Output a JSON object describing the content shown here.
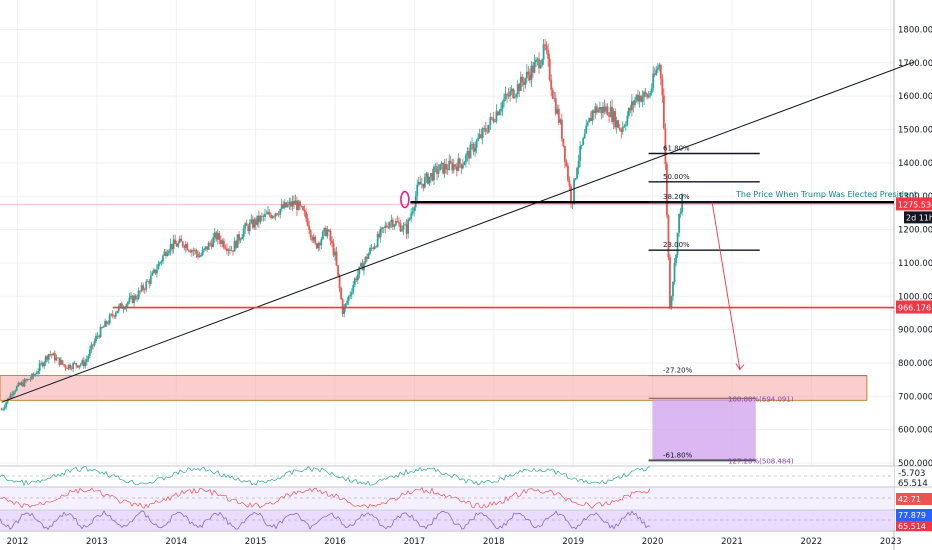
{
  "chart_data": {
    "type": "candlestick",
    "price_axis": {
      "ticks": [
        "1800.000",
        "1700.000",
        "1600.000",
        "1500.000",
        "1400.000",
        "1300.000",
        "1200.000",
        "1100.000",
        "1000.000",
        "900.000",
        "800.000",
        "700.000",
        "600.000",
        "500.000"
      ],
      "range": [
        488,
        1840
      ]
    },
    "time_axis": {
      "ticks": [
        "2012",
        "2013",
        "2014",
        "2015",
        "2016",
        "2017",
        "2018",
        "2019",
        "2020",
        "2021",
        "2022",
        "2023"
      ],
      "range": [
        2011.78,
        2023.52
      ]
    },
    "current_price": {
      "label": "1275.536",
      "countdown": "2d 11h",
      "value": 1275.5,
      "color": "#f23645"
    },
    "support_line": {
      "label": "966.176",
      "value": 966.2,
      "color": "#f23645"
    },
    "annotation": {
      "text": "The Price When Trump Was Elected President",
      "value": 1282
    },
    "fib_upper": [
      {
        "label": "61.80%",
        "value": 1428
      },
      {
        "label": "50.00%",
        "value": 1343
      },
      {
        "label": "38.20%",
        "value": 1282
      },
      {
        "label": "23.00%",
        "value": 1138
      }
    ],
    "fib_lower": [
      {
        "label": "-27.20%",
        "value": 762
      },
      {
        "label": "100.00%(694.091)",
        "value": 694
      },
      {
        "label": "127.20%(508.484)",
        "value": 508
      },
      {
        "label": "-61.80%",
        "value": 508
      }
    ],
    "trendline": {
      "start": [
        2011.8,
        682
      ],
      "end": [
        2023.3,
        1703
      ]
    },
    "zone": {
      "x_range": [
        2011.78,
        2022.7
      ],
      "y_range": [
        688,
        762
      ],
      "color": "#f7a6a6"
    },
    "target_box": {
      "x_range": [
        2020.0,
        2021.3
      ],
      "y_range": [
        508,
        694
      ],
      "color": "#cfa0ec"
    },
    "projection_arrow": {
      "start": [
        2020.75,
        1282
      ],
      "end": [
        2021.1,
        780
      ]
    },
    "price_path": [
      [
        2011.8,
        660
      ],
      [
        2011.95,
        720
      ],
      [
        2012.2,
        760
      ],
      [
        2012.4,
        830
      ],
      [
        2012.6,
        790
      ],
      [
        2012.85,
        800
      ],
      [
        2013.0,
        880
      ],
      [
        2013.25,
        960
      ],
      [
        2013.5,
        1000
      ],
      [
        2013.7,
        1060
      ],
      [
        2013.9,
        1150
      ],
      [
        2014.1,
        1160
      ],
      [
        2014.3,
        1120
      ],
      [
        2014.5,
        1180
      ],
      [
        2014.7,
        1140
      ],
      [
        2014.85,
        1200
      ],
      [
        2015.05,
        1230
      ],
      [
        2015.3,
        1260
      ],
      [
        2015.5,
        1280
      ],
      [
        2015.65,
        1230
      ],
      [
        2015.75,
        1150
      ],
      [
        2015.9,
        1200
      ],
      [
        2016.0,
        1120
      ],
      [
        2016.1,
        950
      ],
      [
        2016.25,
        1050
      ],
      [
        2016.45,
        1140
      ],
      [
        2016.7,
        1230
      ],
      [
        2016.9,
        1200
      ],
      [
        2017.05,
        1330
      ],
      [
        2017.3,
        1380
      ],
      [
        2017.6,
        1400
      ],
      [
        2017.9,
        1500
      ],
      [
        2018.1,
        1580
      ],
      [
        2018.35,
        1640
      ],
      [
        2018.55,
        1700
      ],
      [
        2018.65,
        1740
      ],
      [
        2018.75,
        1600
      ],
      [
        2018.85,
        1500
      ],
      [
        2018.98,
        1280
      ],
      [
        2019.05,
        1400
      ],
      [
        2019.25,
        1560
      ],
      [
        2019.45,
        1560
      ],
      [
        2019.6,
        1500
      ],
      [
        2019.8,
        1600
      ],
      [
        2019.95,
        1600
      ],
      [
        2020.08,
        1700
      ],
      [
        2020.12,
        1640
      ],
      [
        2020.16,
        1400
      ],
      [
        2020.22,
        970
      ],
      [
        2020.28,
        1100
      ],
      [
        2020.34,
        1250
      ],
      [
        2020.38,
        1300
      ]
    ],
    "indicators": [
      {
        "name": "macd",
        "label_1": "-5.703",
        "label_2": "65.514"
      },
      {
        "name": "rsi",
        "label_1": "42.71"
      },
      {
        "name": "stoch",
        "label_1": "77.879",
        "label_2": "65.514"
      }
    ]
  }
}
